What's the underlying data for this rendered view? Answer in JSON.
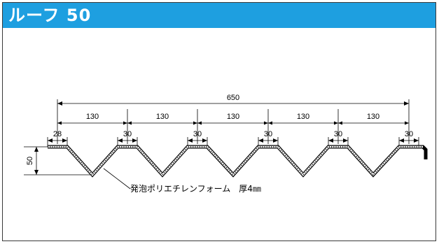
{
  "header": {
    "title": "ルーフ 50",
    "accent_color": "#1e9fe0"
  },
  "diagram": {
    "overall_width": "650",
    "pitches": [
      "130",
      "130",
      "130",
      "130",
      "130"
    ],
    "top_widths": [
      "28",
      "30",
      "30",
      "30",
      "30",
      "30"
    ],
    "height": "50",
    "annotation": "発泡ポリエチレンフォーム　厚4㎜"
  }
}
